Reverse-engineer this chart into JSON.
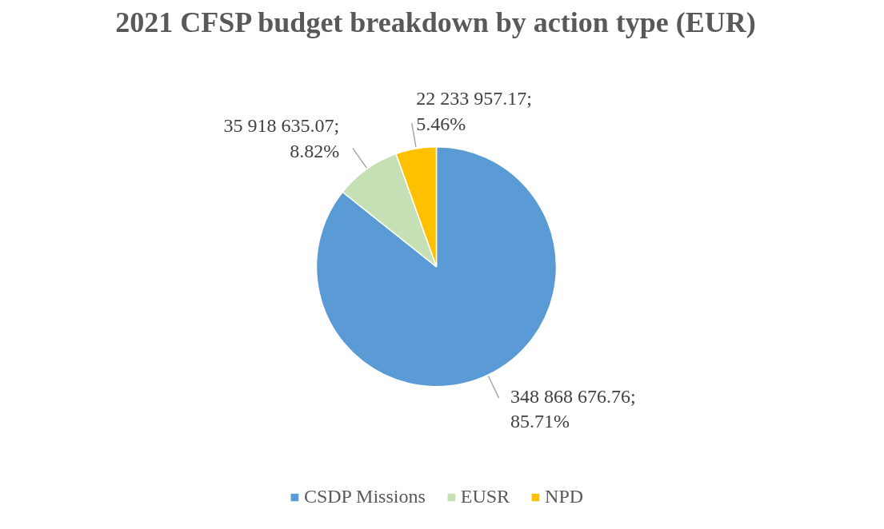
{
  "chart_data": {
    "type": "pie",
    "title": "2021 CFSP budget breakdown by action type (EUR)",
    "categories": [
      "CSDP Missions",
      "EUSR",
      "NPD"
    ],
    "values": [
      348868676.76,
      35918635.07,
      22233957.17
    ],
    "colors": [
      "#5b9bd5",
      "#c5e0b4",
      "#ffc000"
    ],
    "value_labels": [
      "348 868 676.76; 85.71%",
      "35 918 635.07; 8.82%",
      "22 233 957.17; 5.46%"
    ],
    "legend": "bottom"
  }
}
